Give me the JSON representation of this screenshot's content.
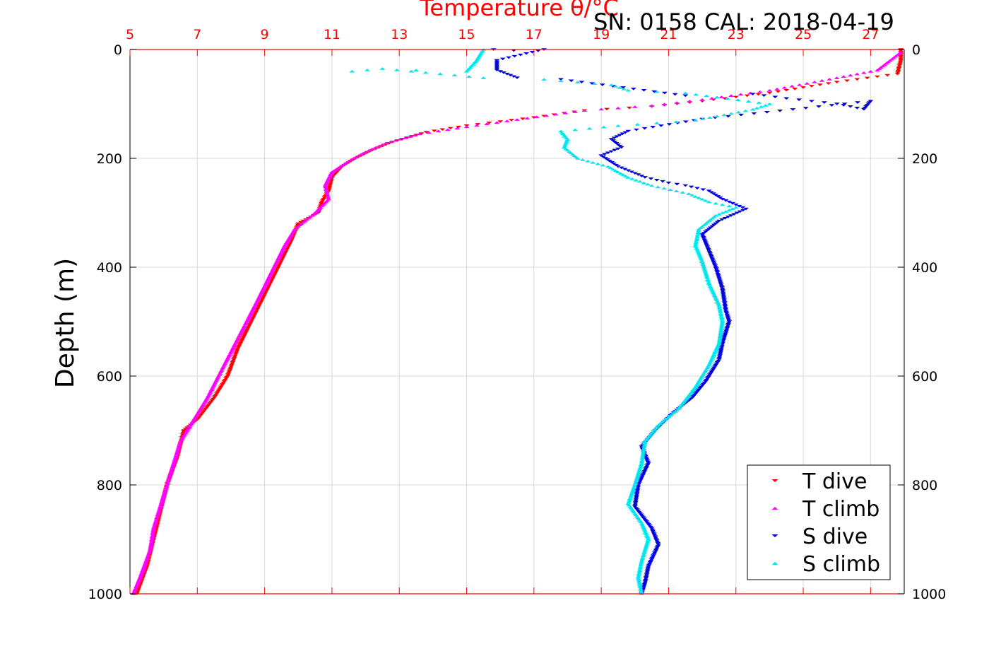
{
  "chart_data": {
    "type": "scatter",
    "title": "SN: 0158  CAL: 2018-04-19",
    "top_axis_label": "Temperature θ/°C",
    "ylabel": "Depth (m)",
    "xlim": [
      5,
      28
    ],
    "ylim": [
      0,
      1000
    ],
    "y_reversed": true,
    "x_ticks": [
      5,
      7,
      9,
      11,
      13,
      15,
      17,
      19,
      21,
      23,
      25,
      27
    ],
    "x_tick_labels": [
      "5",
      "7",
      "9",
      "11",
      "13",
      "15",
      "17",
      "19",
      "21",
      "23",
      "25",
      "27"
    ],
    "y_ticks": [
      0,
      200,
      400,
      600,
      800,
      1000
    ],
    "y_tick_labels": [
      "0",
      "200",
      "400",
      "600",
      "800",
      "1000"
    ],
    "grid": true,
    "legend_position": "bottom-right",
    "colors": {
      "axis_top": "#ff0000",
      "grid": "#d9d9d9"
    },
    "series": [
      {
        "name": "T dive",
        "color": "#ff0000",
        "marker": "triangle-down",
        "points": [
          [
            27.9,
            0
          ],
          [
            27.9,
            20
          ],
          [
            27.8,
            45
          ],
          [
            26.0,
            60
          ],
          [
            24.0,
            80
          ],
          [
            22.0,
            95
          ],
          [
            20.5,
            105
          ],
          [
            18.5,
            112
          ],
          [
            17.0,
            125
          ],
          [
            15.0,
            140
          ],
          [
            13.8,
            152
          ],
          [
            12.8,
            170
          ],
          [
            12.2,
            185
          ],
          [
            11.7,
            200
          ],
          [
            11.3,
            215
          ],
          [
            11.0,
            235
          ],
          [
            10.9,
            260
          ],
          [
            10.7,
            280
          ],
          [
            10.6,
            300
          ],
          [
            10.0,
            320
          ],
          [
            9.8,
            350
          ],
          [
            9.4,
            400
          ],
          [
            9.0,
            450
          ],
          [
            8.6,
            500
          ],
          [
            8.2,
            550
          ],
          [
            7.9,
            600
          ],
          [
            7.5,
            640
          ],
          [
            7.0,
            680
          ],
          [
            6.6,
            700
          ],
          [
            6.4,
            750
          ],
          [
            6.1,
            800
          ],
          [
            5.9,
            850
          ],
          [
            5.7,
            900
          ],
          [
            5.5,
            950
          ],
          [
            5.2,
            1000
          ]
        ]
      },
      {
        "name": "T climb",
        "color": "#ff00ff",
        "marker": "triangle-up",
        "points": [
          [
            27.9,
            5
          ],
          [
            27.2,
            38
          ],
          [
            26.0,
            52
          ],
          [
            24.0,
            75
          ],
          [
            22.0,
            92
          ],
          [
            20.5,
            103
          ],
          [
            18.5,
            112
          ],
          [
            16.8,
            126
          ],
          [
            15.0,
            142
          ],
          [
            13.6,
            155
          ],
          [
            12.6,
            172
          ],
          [
            12.0,
            188
          ],
          [
            11.5,
            205
          ],
          [
            11.0,
            225
          ],
          [
            10.8,
            250
          ],
          [
            10.9,
            275
          ],
          [
            10.5,
            300
          ],
          [
            9.9,
            330
          ],
          [
            9.6,
            360
          ],
          [
            9.2,
            410
          ],
          [
            8.8,
            460
          ],
          [
            8.3,
            520
          ],
          [
            7.8,
            580
          ],
          [
            7.3,
            640
          ],
          [
            6.9,
            680
          ],
          [
            6.5,
            720
          ],
          [
            6.2,
            780
          ],
          [
            5.9,
            840
          ],
          [
            5.7,
            880
          ],
          [
            5.6,
            920
          ],
          [
            5.3,
            970
          ],
          [
            5.1,
            1000
          ]
        ]
      },
      {
        "name": "S dive",
        "color": "#0000dd",
        "marker": "triangle-down",
        "points": [
          [
            15.8,
            0
          ],
          [
            16.4,
            2
          ],
          [
            17.3,
            0
          ],
          [
            15.9,
            20
          ],
          [
            15.9,
            38
          ],
          [
            16.5,
            52
          ],
          [
            17.8,
            55
          ],
          [
            21.5,
            85
          ],
          [
            23.5,
            82
          ],
          [
            24.5,
            90
          ],
          [
            26.0,
            100
          ],
          [
            26.8,
            110
          ],
          [
            27.0,
            95
          ],
          [
            22.0,
            128
          ],
          [
            19.8,
            150
          ],
          [
            19.3,
            165
          ],
          [
            19.6,
            180
          ],
          [
            19.0,
            195
          ],
          [
            19.5,
            215
          ],
          [
            20.3,
            235
          ],
          [
            21.0,
            245
          ],
          [
            21.5,
            250
          ],
          [
            22.2,
            260
          ],
          [
            22.6,
            275
          ],
          [
            23.3,
            293
          ],
          [
            22.5,
            315
          ],
          [
            22.0,
            340
          ],
          [
            22.2,
            370
          ],
          [
            22.4,
            400
          ],
          [
            22.6,
            440
          ],
          [
            22.7,
            480
          ],
          [
            22.8,
            500
          ],
          [
            22.6,
            540
          ],
          [
            22.5,
            570
          ],
          [
            22.1,
            610
          ],
          [
            21.7,
            640
          ],
          [
            21.1,
            670
          ],
          [
            20.6,
            700
          ],
          [
            20.2,
            730
          ],
          [
            20.4,
            760
          ],
          [
            20.1,
            800
          ],
          [
            20.0,
            840
          ],
          [
            20.5,
            880
          ],
          [
            20.7,
            910
          ],
          [
            20.4,
            950
          ],
          [
            20.3,
            980
          ],
          [
            20.2,
            1000
          ]
        ]
      },
      {
        "name": "S climb",
        "color": "#00e5ee",
        "marker": "triangle-up",
        "points": [
          [
            15.5,
            0
          ],
          [
            15.3,
            20
          ],
          [
            15.0,
            40
          ],
          [
            13.5,
            38
          ],
          [
            11.6,
            40
          ],
          [
            12.5,
            35
          ],
          [
            15.5,
            52
          ],
          [
            17.3,
            55
          ],
          [
            19.3,
            65
          ],
          [
            19.8,
            75
          ],
          [
            21.5,
            80
          ],
          [
            24.0,
            100
          ],
          [
            23.5,
            110
          ],
          [
            21.8,
            130
          ],
          [
            19.5,
            140
          ],
          [
            17.8,
            150
          ],
          [
            18.0,
            165
          ],
          [
            17.9,
            180
          ],
          [
            18.3,
            200
          ],
          [
            19.2,
            215
          ],
          [
            19.8,
            235
          ],
          [
            20.5,
            250
          ],
          [
            21.6,
            265
          ],
          [
            22.2,
            280
          ],
          [
            23.0,
            290
          ],
          [
            22.4,
            305
          ],
          [
            21.9,
            330
          ],
          [
            21.8,
            360
          ],
          [
            22.0,
            390
          ],
          [
            22.2,
            430
          ],
          [
            22.5,
            470
          ],
          [
            22.6,
            500
          ],
          [
            22.5,
            540
          ],
          [
            22.2,
            580
          ],
          [
            21.8,
            620
          ],
          [
            21.3,
            660
          ],
          [
            20.7,
            690
          ],
          [
            20.3,
            720
          ],
          [
            20.2,
            760
          ],
          [
            20.0,
            800
          ],
          [
            19.8,
            835
          ],
          [
            20.2,
            870
          ],
          [
            20.4,
            900
          ],
          [
            20.2,
            940
          ],
          [
            20.1,
            970
          ],
          [
            20.2,
            1000
          ]
        ]
      }
    ]
  }
}
